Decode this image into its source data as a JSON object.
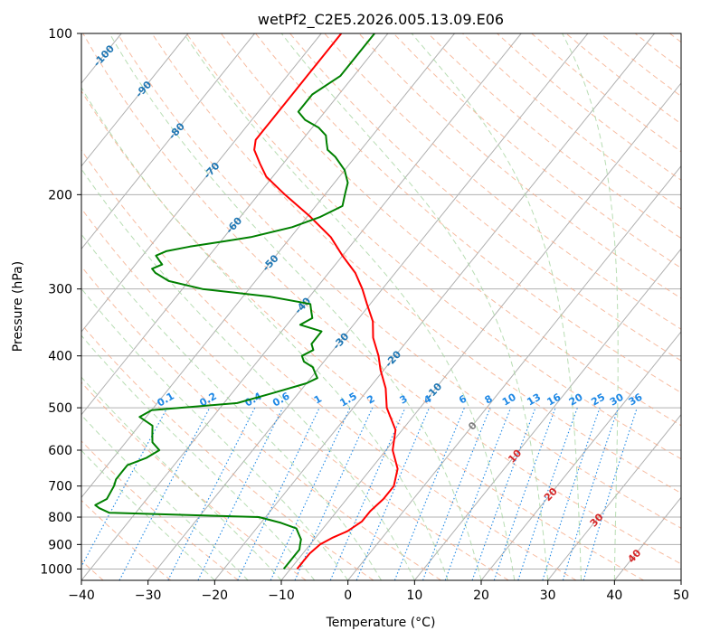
{
  "chart_data": {
    "type": "line",
    "title": "wetPf2_C2E5.2026.005.13.09.E06",
    "xlabel": "Temperature (°C)",
    "ylabel": "Pressure (hPa)",
    "xlim": [
      -40,
      50
    ],
    "ylim": [
      1050,
      100
    ],
    "y_scale": "log",
    "grid": true,
    "x_ticks": [
      "−40",
      "−30",
      "−20",
      "−10",
      "0",
      "10",
      "20",
      "30",
      "40",
      "50"
    ],
    "y_ticks": [
      "100",
      "200",
      "300",
      "400",
      "500",
      "600",
      "700",
      "800",
      "900",
      "1000"
    ],
    "isotherm_labels": [
      "-100",
      "-90",
      "-80",
      "-70",
      "-60",
      "-50",
      "-40",
      "-30",
      "-20",
      "-10",
      "0",
      "10",
      "20",
      "30",
      "40"
    ],
    "mixing_ratio_labels": [
      "0.1",
      "0.2",
      "0.4",
      "0.6",
      "1",
      "1.5",
      "2",
      "3",
      "4",
      "6",
      "8",
      "10",
      "13",
      "16",
      "20",
      "25",
      "30",
      "36"
    ],
    "series": [
      {
        "role": "temperature",
        "color": "#ff0000",
        "p": [
          1000,
          965,
          935,
          900,
          875,
          850,
          815,
          780,
          740,
          700,
          650,
          600,
          550,
          500,
          460,
          425,
          400,
          370,
          345,
          320,
          300,
          280,
          260,
          240,
          220,
          200,
          185,
          175,
          165,
          158,
          150,
          145,
          140,
          130,
          120,
          110,
          103,
          100
        ],
        "t": [
          -9,
          -9,
          -9,
          -8.5,
          -7.5,
          -6,
          -5,
          -5,
          -4.5,
          -4.5,
          -6,
          -9,
          -11,
          -15,
          -17.5,
          -20.5,
          -22.5,
          -25.5,
          -27.5,
          -30.5,
          -33,
          -36,
          -40,
          -44,
          -49.5,
          -56,
          -61,
          -63.5,
          -66,
          -67,
          -67,
          -67,
          -67,
          -67,
          -67,
          -67,
          -67,
          -67
        ]
      },
      {
        "role": "dewpoint",
        "color": "#008000",
        "p": [
          1000,
          960,
          940,
          920,
          900,
          880,
          860,
          840,
          820,
          800,
          785,
          770,
          760,
          740,
          700,
          680,
          660,
          640,
          630,
          620,
          600,
          580,
          560,
          540,
          520,
          505,
          490,
          470,
          450,
          440,
          430,
          420,
          410,
          400,
          390,
          380,
          370,
          360,
          350,
          340,
          330,
          320,
          310,
          300,
          290,
          280,
          275,
          270,
          265,
          260,
          255,
          250,
          245,
          240,
          230,
          220,
          210,
          200,
          190,
          180,
          170,
          165,
          160,
          155,
          150,
          145,
          140,
          130,
          120,
          110,
          100
        ],
        "t": [
          -11,
          -11,
          -11,
          -11,
          -11.5,
          -12,
          -13,
          -14,
          -17,
          -21,
          -44,
          -46,
          -47,
          -46,
          -46.5,
          -47,
          -47,
          -47,
          -46,
          -45,
          -44,
          -46,
          -47,
          -48,
          -51,
          -50,
          -38,
          -34,
          -30,
          -29,
          -30,
          -31,
          -33,
          -34,
          -33,
          -34,
          -34,
          -34,
          -38,
          -37,
          -38,
          -39,
          -46,
          -57,
          -63,
          -66,
          -67,
          -66,
          -67,
          -68,
          -67,
          -64,
          -60,
          -56,
          -51,
          -48,
          -46,
          -47,
          -48,
          -50,
          -53,
          -55,
          -56,
          -57,
          -59,
          -62,
          -64,
          -64,
          -62,
          -62,
          -62
        ]
      }
    ]
  }
}
